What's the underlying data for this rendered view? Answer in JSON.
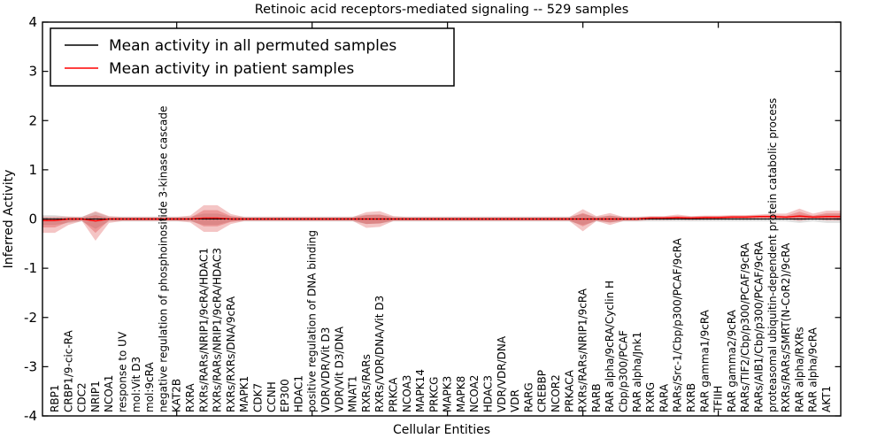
{
  "chart_data": {
    "type": "line",
    "title": "Retinoic acid receptors-mediated signaling -- 529 samples",
    "xlabel": "Cellular Entities",
    "ylabel": "Inferred Activity",
    "ylim": [
      -4,
      4
    ],
    "yticks": [
      -4,
      -3,
      -2,
      -1,
      0,
      1,
      2,
      3,
      4
    ],
    "major_tick_indices": [
      9,
      19,
      29,
      39,
      49
    ],
    "grid": false,
    "legend_position": "upper left",
    "legend": [
      {
        "label": "Mean activity in all permuted samples",
        "color": "#000000"
      },
      {
        "label": "Mean activity in patient samples",
        "color": "#ff0000"
      }
    ],
    "zero_line": {
      "style": "dotted",
      "color": "#000000",
      "y": 0
    },
    "categories": [
      "RBP1",
      "CRBP1/9-cic-RA",
      "CDC2",
      "NRIP1",
      "NCOA1",
      "response to UV",
      "mol:Vit D3",
      "mol:9cRA",
      "negative regulation of phosphoinositide 3-kinase cascade",
      "KAT2B",
      "RXRA",
      "RXRs/RARs/NRIP1/9cRA/HDAC1",
      "RXRs/RARs/NRIP1/9cRA/HDAC3",
      "RXRs/RXRs/DNA/9cRA",
      "MAPK1",
      "CDK7",
      "CCNH",
      "EP300",
      "HDAC1",
      "positive regulation of DNA binding",
      "VDR/VDR/Vit D3",
      "VDR/Vit D3/DNA",
      "MNAT1",
      "RXRs/RARs",
      "RXRs/VDR/DNA/Vit D3",
      "PRKCA",
      "NCOA3",
      "MAPK14",
      "PRKCG",
      "MAPK3",
      "MAPK8",
      "NCOA2",
      "HDAC3",
      "VDR/VDR/DNA",
      "VDR",
      "RARG",
      "CREBBP",
      "NCOR2",
      "PRKACA",
      "RXRs/RARs/NRIP1/9cRA",
      "RARB",
      "RAR alpha/9cRA/Cyclin H",
      "Cbp/p300/PCAF",
      "RAR alpha/Jnk1",
      "RXRG",
      "RARA",
      "RARs/Src-1/Cbp/p300/PCAF/9cRA",
      "RXRB",
      "RAR gamma1/9cRA",
      "TFIIH",
      "RAR gamma2/9cRA",
      "RARs/TIF2/Cbp/p300/PCAF/9cRA",
      "RARs/AIB1/Cbp/p300/PCAF/9cRA",
      "proteasomal ubiquitin-dependent protein catabolic process",
      "RXRs/RARs/SMRT(N-CoR2)/9cRA",
      "RAR alpha/RXRs",
      "RAR alpha/9cRA",
      "AKT1"
    ],
    "series": [
      {
        "name": "Mean activity in all permuted samples",
        "color": "#000000",
        "values": {
          "default": 0,
          "overrides": {}
        }
      },
      {
        "name": "Mean activity in patient samples",
        "color": "#ff0000",
        "values": {
          "default": 0,
          "overrides": {
            "0": -0.03,
            "3": -0.04,
            "11": 0.02,
            "12": 0.02,
            "44": 0.02,
            "45": 0.02,
            "46": 0.03,
            "47": 0.02,
            "48": 0.03,
            "49": 0.03,
            "50": 0.04,
            "51": 0.04,
            "52": 0.05,
            "53": 0.05,
            "54": 0.04,
            "55": 0.06,
            "56": 0.04,
            "57": 0.05
          }
        }
      }
    ],
    "bands": [
      {
        "name": "permuted-samples-spread",
        "color": "#000000",
        "opacity": 0.12,
        "upper": {
          "default": 0.05,
          "overrides": {
            "0": 0.08,
            "3": 0.14,
            "11": 0.11,
            "12": 0.11,
            "23": 0.09,
            "24": 0.09,
            "39": 0.1,
            "41": 0.07,
            "55": 0.09,
            "56": 0.07,
            "57": 0.09
          }
        },
        "lower": {
          "default": 0.05,
          "overrides": {
            "0": 0.12,
            "1": 0.08,
            "3": 0.2,
            "11": 0.12,
            "12": 0.12,
            "23": 0.1,
            "24": 0.09,
            "39": 0.12,
            "41": 0.07,
            "55": 0.08,
            "57": 0.08
          }
        }
      },
      {
        "name": "patient-samples-spread-outer",
        "color": "#d93030",
        "opacity": 0.28,
        "upper": {
          "default": 0.04,
          "overrides": {
            "0": 0.08,
            "1": 0.05,
            "3": 0.2,
            "4": 0.06,
            "10": 0.07,
            "11": 0.26,
            "12": 0.26,
            "13": 0.1,
            "23": 0.14,
            "24": 0.16,
            "25": 0.06,
            "39": 0.2,
            "40": 0.06,
            "41": 0.12,
            "46": 0.06,
            "53": 0.06,
            "54": 0.07,
            "55": 0.15,
            "56": 0.07,
            "57": 0.12
          }
        },
        "lower": {
          "default": 0.04,
          "overrides": {
            "0": 0.25,
            "1": 0.12,
            "3": 0.4,
            "4": 0.08,
            "10": 0.07,
            "11": 0.28,
            "12": 0.28,
            "13": 0.1,
            "23": 0.18,
            "24": 0.16,
            "39": 0.25,
            "41": 0.12,
            "55": 0.1,
            "57": 0.08
          }
        }
      },
      {
        "name": "patient-samples-spread-inner",
        "color": "#d93030",
        "opacity": 0.3,
        "upper": {
          "default": 0.025,
          "overrides": {
            "0": 0.04,
            "3": 0.12,
            "11": 0.16,
            "12": 0.16,
            "13": 0.06,
            "23": 0.08,
            "24": 0.09,
            "39": 0.12,
            "41": 0.07,
            "55": 0.09,
            "57": 0.07
          }
        },
        "lower": {
          "default": 0.025,
          "overrides": {
            "0": 0.14,
            "1": 0.06,
            "3": 0.24,
            "11": 0.17,
            "12": 0.17,
            "13": 0.06,
            "23": 0.1,
            "24": 0.09,
            "39": 0.15,
            "41": 0.07,
            "55": 0.06,
            "57": 0.05
          }
        }
      }
    ]
  }
}
